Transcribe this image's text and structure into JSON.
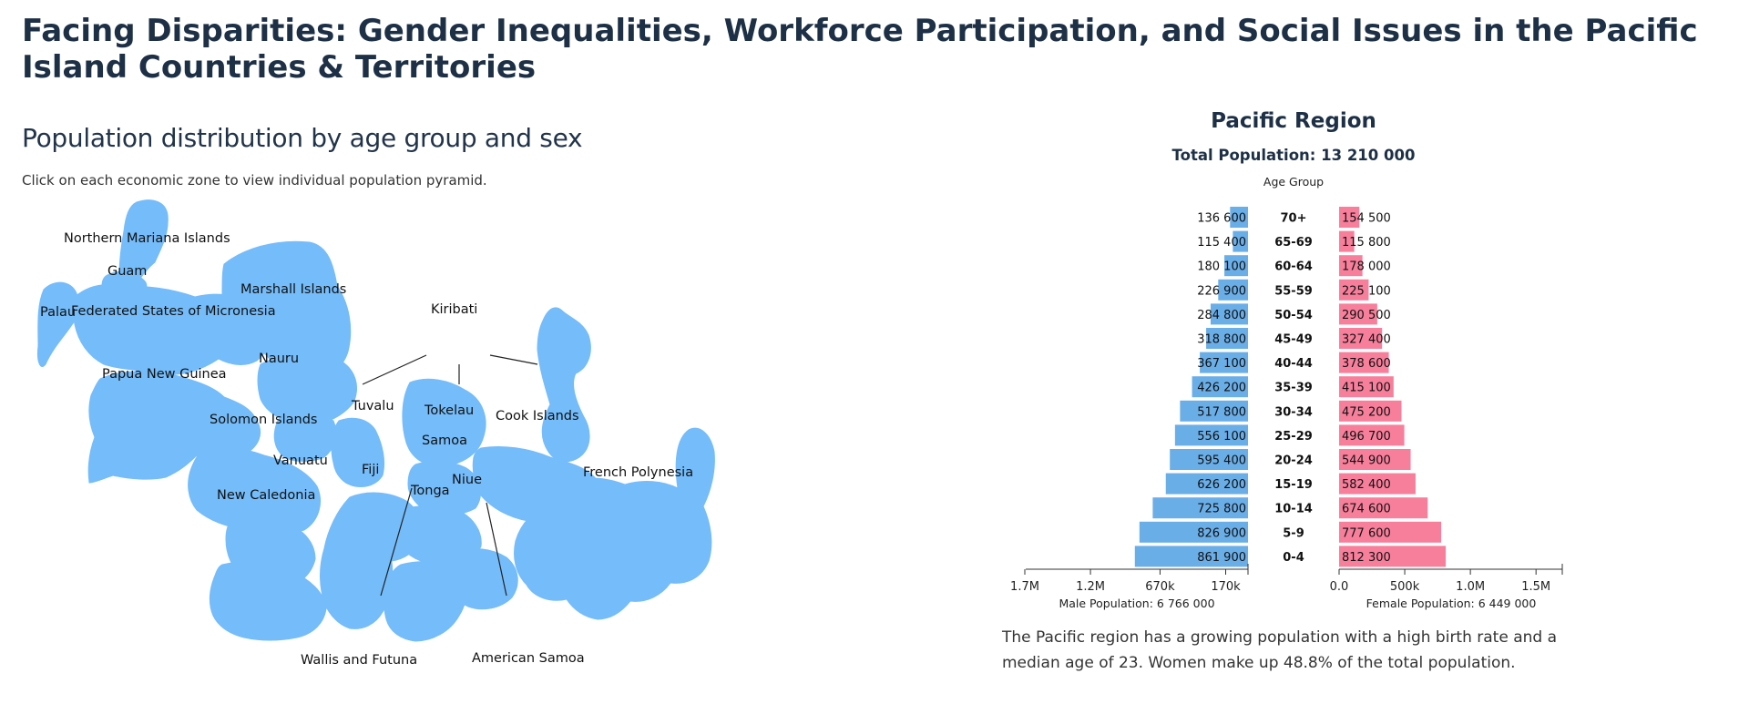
{
  "page": {
    "title": "Facing Disparities: Gender Inequalities, Workforce Participation, and Social Issues in the Pacific Island Countries & Territories",
    "subtitle": "Population distribution by age group and sex",
    "instructions": "Click on each economic zone to view individual population pyramid.",
    "description": "The Pacific region has a growing population with a high birth rate and a median age of 23. Women make up 48.8% of the total population."
  },
  "colors": {
    "zone_fill": "#74bcfa",
    "male_bar": "#6aaee8",
    "female_bar": "#f77f9b"
  },
  "map": {
    "zones": [
      {
        "id": "northern-mariana-islands",
        "label": "Northern Mariana Islands"
      },
      {
        "id": "guam",
        "label": "Guam"
      },
      {
        "id": "palau",
        "label": "Palau"
      },
      {
        "id": "federated-states-of-micronesia",
        "label": "Federated States of Micronesia"
      },
      {
        "id": "marshall-islands",
        "label": "Marshall Islands"
      },
      {
        "id": "kiribati",
        "label": "Kiribati"
      },
      {
        "id": "nauru",
        "label": "Nauru"
      },
      {
        "id": "papua-new-guinea",
        "label": "Papua New Guinea"
      },
      {
        "id": "solomon-islands",
        "label": "Solomon Islands"
      },
      {
        "id": "tuvalu",
        "label": "Tuvalu"
      },
      {
        "id": "tokelau",
        "label": "Tokelau"
      },
      {
        "id": "cook-islands",
        "label": "Cook Islands"
      },
      {
        "id": "samoa",
        "label": "Samoa"
      },
      {
        "id": "vanuatu",
        "label": "Vanuatu"
      },
      {
        "id": "fiji",
        "label": "Fiji"
      },
      {
        "id": "niue",
        "label": "Niue"
      },
      {
        "id": "tonga",
        "label": "Tonga"
      },
      {
        "id": "french-polynesia",
        "label": "French Polynesia"
      },
      {
        "id": "new-caledonia",
        "label": "New Caledonia"
      },
      {
        "id": "wallis-and-futuna",
        "label": "Wallis and Futuna"
      },
      {
        "id": "american-samoa",
        "label": "American Samoa"
      }
    ]
  },
  "chart_data": {
    "type": "population-pyramid",
    "title": "Pacific Region",
    "total_label": "Total Population: 13 210 000",
    "age_axis_label": "Age Group",
    "male_axis_label": "Male Population: 6 766 000",
    "female_axis_label": "Female Population: 6 449 000",
    "age_groups": [
      "70+",
      "65-69",
      "60-64",
      "55-59",
      "50-54",
      "45-49",
      "40-44",
      "35-39",
      "30-34",
      "25-29",
      "20-24",
      "15-19",
      "10-14",
      "5-9",
      "0-4"
    ],
    "male": [
      136600,
      115400,
      180100,
      226900,
      284800,
      318800,
      367100,
      426200,
      517800,
      556100,
      595400,
      626200,
      725800,
      826900,
      861900
    ],
    "female": [
      154500,
      115800,
      178000,
      225100,
      290500,
      327400,
      378600,
      415100,
      475200,
      496700,
      544900,
      582400,
      674600,
      777600,
      812300
    ],
    "male_labels": [
      "136 600",
      "115 400",
      "180 100",
      "226 900",
      "284 800",
      "318 800",
      "367 100",
      "426 200",
      "517 800",
      "556 100",
      "595 400",
      "626 200",
      "725 800",
      "826 900",
      "861 900"
    ],
    "female_labels": [
      "154 500",
      "115 800",
      "178 000",
      "225 100",
      "290 500",
      "327 400",
      "378 600",
      "415 100",
      "475 200",
      "496 700",
      "544 900",
      "582 400",
      "674 600",
      "777 600",
      "812 300"
    ],
    "male_axis": {
      "range": [
        0,
        1700000
      ],
      "ticks": [
        1700000,
        1200000,
        670000,
        170000
      ],
      "tick_labels": [
        "1.7M",
        "1.2M",
        "670k",
        "170k"
      ]
    },
    "female_axis": {
      "range": [
        0,
        1700000
      ],
      "ticks": [
        0,
        500000,
        1000000,
        1500000
      ],
      "tick_labels": [
        "0.0",
        "500k",
        "1.0M",
        "1.5M"
      ]
    }
  }
}
